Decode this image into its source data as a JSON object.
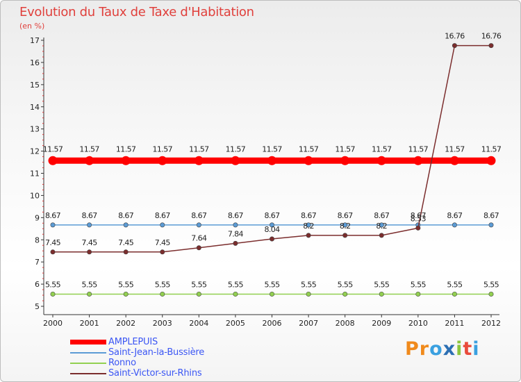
{
  "chart_data": {
    "type": "line",
    "title": "Evolution du Taux de Taxe d'Habitation",
    "subtitle": "(en %)",
    "xlabel": "",
    "ylabel": "(en %)",
    "ylim": [
      5,
      17
    ],
    "yticks": [
      "5",
      "6",
      "7",
      "8",
      "9",
      "10",
      "11",
      "12",
      "13",
      "14",
      "15",
      "16",
      "17"
    ],
    "categories": [
      "2000",
      "2001",
      "2002",
      "2003",
      "2004",
      "2005",
      "2006",
      "2007",
      "2008",
      "2009",
      "2010",
      "2011",
      "2012"
    ],
    "grid": false,
    "legend_position": "bottom-left",
    "series": [
      {
        "name": "AMPLEPUIS",
        "color": "#ff0000",
        "values": [
          11.57,
          11.57,
          11.57,
          11.57,
          11.57,
          11.57,
          11.57,
          11.57,
          11.57,
          11.57,
          11.57,
          11.57,
          11.57
        ],
        "labels": [
          "11.57",
          "11.57",
          "11.57",
          "11.57",
          "11.57",
          "11.57",
          "11.57",
          "11.57",
          "11.57",
          "11.57",
          "11.57",
          "11.57",
          "11.57"
        ]
      },
      {
        "name": "Saint-Jean-la-Bussière",
        "color": "#5b9bd5",
        "values": [
          8.67,
          8.67,
          8.67,
          8.67,
          8.67,
          8.67,
          8.67,
          8.67,
          8.67,
          8.67,
          8.67,
          8.67,
          8.67
        ],
        "labels": [
          "8.67",
          "8.67",
          "8.67",
          "8.67",
          "8.67",
          "8.67",
          "8.67",
          "8.67",
          "8.67",
          "8.67",
          "8.67",
          "8.67",
          "8.67"
        ]
      },
      {
        "name": "Ronno",
        "color": "#92d050",
        "values": [
          5.55,
          5.55,
          5.55,
          5.55,
          5.55,
          5.55,
          5.55,
          5.55,
          5.55,
          5.55,
          5.55,
          5.55,
          5.55
        ],
        "labels": [
          "5.55",
          "5.55",
          "5.55",
          "5.55",
          "5.55",
          "5.55",
          "5.55",
          "5.55",
          "5.55",
          "5.55",
          "5.55",
          "5.55",
          "5.55"
        ]
      },
      {
        "name": "Saint-Victor-sur-Rhins",
        "color": "#7b2d2d",
        "values": [
          7.45,
          7.45,
          7.45,
          7.45,
          7.64,
          7.84,
          8.04,
          8.2,
          8.2,
          8.2,
          8.53,
          16.76,
          16.76
        ],
        "labels": [
          "7.45",
          "7.45",
          "7.45",
          "7.45",
          "7.64",
          "7.84",
          "8.04",
          "8.2",
          "8.2",
          "8.2",
          "8.53",
          "16.76",
          "16.76"
        ]
      }
    ]
  },
  "logo": {
    "letters": [
      "P",
      "r",
      "o",
      "x",
      "i",
      "t",
      "i"
    ],
    "colors": [
      "#f08a1c",
      "#f08a1c",
      "#3aa0e0",
      "#2c6fb3",
      "#8cc63f",
      "#e94b3c",
      "#3aa0e0"
    ]
  }
}
